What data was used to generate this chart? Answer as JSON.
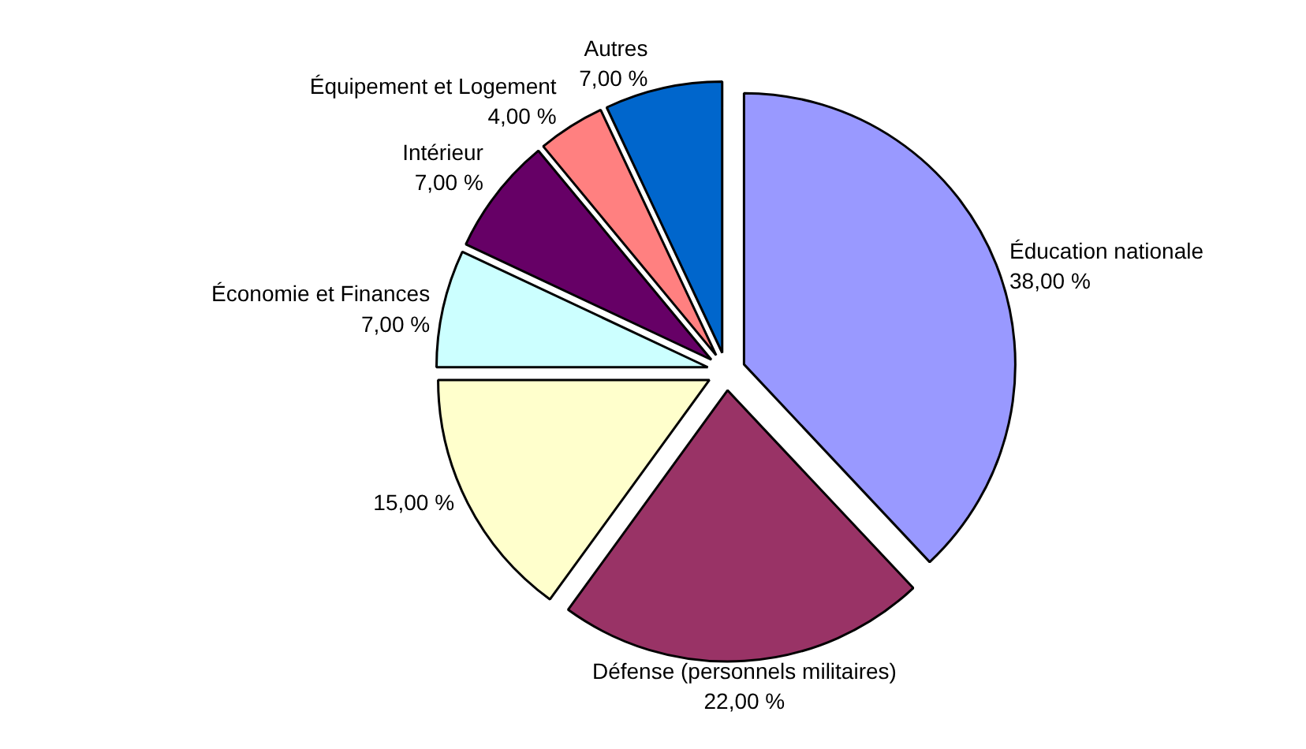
{
  "chart_data": {
    "type": "pie",
    "categories": [
      "Éducation nationale",
      "Défense (personnels militaires)",
      null,
      "Économie et Finances",
      "Intérieur",
      "Équipement et Logement",
      "Autres"
    ],
    "values": [
      38,
      22,
      15,
      7,
      7,
      4,
      7
    ],
    "value_labels": [
      "38,00 %",
      "22,00 %",
      "15,00 %",
      "7,00 %",
      "7,00 %",
      "4,00 %",
      "7,00 %"
    ],
    "colors": [
      "#9999ff",
      "#993366",
      "#ffffcc",
      "#ccffff",
      "#660066",
      "#ff8080",
      "#0066cc"
    ]
  }
}
